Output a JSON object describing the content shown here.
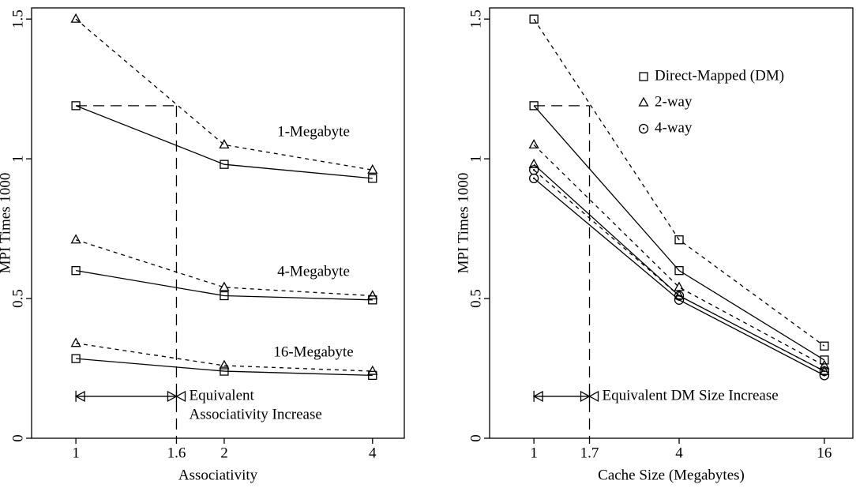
{
  "chart_data": [
    {
      "type": "line",
      "xlabel": "Associativity",
      "ylabel": "MPI Times 1000",
      "log_x": true,
      "x": [
        1,
        2,
        4
      ],
      "xlim": [
        0.813,
        4.64
      ],
      "xticks": [
        1,
        1.6,
        2,
        4
      ],
      "ylim": [
        0,
        1.54
      ],
      "yticks": [
        0,
        0.5,
        1,
        1.5
      ],
      "color": "#000000",
      "series": [
        {
          "style": "solid",
          "marker": "square",
          "values": [
            1.19,
            0.98,
            0.93
          ]
        },
        {
          "style": "dashed",
          "marker": "triangle",
          "values": [
            1.5,
            1.05,
            0.96
          ]
        },
        {
          "style": "solid",
          "marker": "square",
          "values": [
            0.6,
            0.51,
            0.495
          ]
        },
        {
          "style": "dashed",
          "marker": "triangle",
          "values": [
            0.71,
            0.54,
            0.51
          ]
        },
        {
          "style": "solid",
          "marker": "square",
          "values": [
            0.285,
            0.24,
            0.225
          ]
        },
        {
          "style": "dashed",
          "marker": "triangle",
          "values": [
            0.34,
            0.26,
            0.24
          ]
        }
      ],
      "annotations": [
        "1-Megabyte",
        "4-Megabyte",
        "16-Megabyte"
      ],
      "equivalent": {
        "x_from": 1,
        "x": 1.6,
        "y": 1.19,
        "arrow_y": 0.15,
        "text": [
          "Equivalent",
          "Associativity Increase"
        ]
      }
    },
    {
      "type": "line",
      "xlabel": "Cache Size (Megabytes)",
      "ylabel": "MPI Times 1000",
      "log_x": true,
      "x": [
        1,
        4,
        16
      ],
      "xlim": [
        0.655,
        21
      ],
      "xticks": [
        1,
        1.7,
        4,
        16
      ],
      "ylim": [
        0,
        1.54
      ],
      "yticks": [
        0,
        0.5,
        1,
        1.5
      ],
      "color": "#000000",
      "legend": [
        {
          "name": "Direct-Mapped (DM)",
          "marker": "square"
        },
        {
          "name": "2-way",
          "marker": "triangle"
        },
        {
          "name": "4-way",
          "marker": "circle"
        }
      ],
      "series": [
        {
          "style": "dashed",
          "marker": "square",
          "values": [
            1.5,
            0.71,
            0.33
          ]
        },
        {
          "style": "solid",
          "marker": "square",
          "values": [
            1.19,
            0.6,
            0.28
          ]
        },
        {
          "style": "dashed",
          "marker": "triangle",
          "values": [
            1.05,
            0.54,
            0.26
          ]
        },
        {
          "style": "solid",
          "marker": "triangle",
          "values": [
            0.98,
            0.51,
            0.24
          ]
        },
        {
          "style": "dashed",
          "marker": "circle",
          "values": [
            0.96,
            0.51,
            0.24
          ]
        },
        {
          "style": "solid",
          "marker": "circle",
          "values": [
            0.93,
            0.495,
            0.225
          ]
        }
      ],
      "equivalent": {
        "x_from": 1,
        "x": 1.7,
        "y": 1.19,
        "arrow_y": 0.15,
        "text": [
          "Equivalent DM Size Increase"
        ]
      }
    }
  ]
}
